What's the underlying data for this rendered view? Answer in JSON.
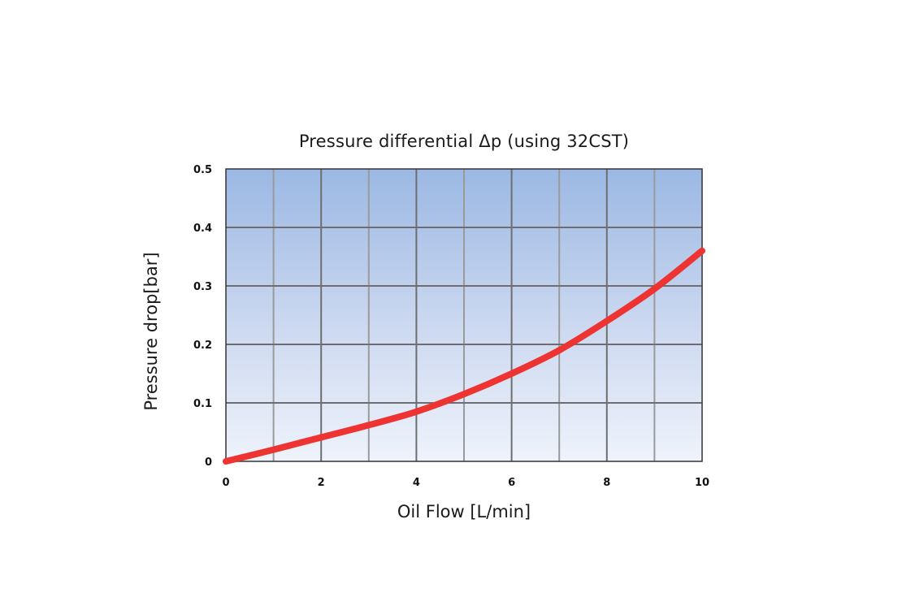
{
  "chart_data": {
    "type": "line",
    "title": "Pressure differential Δp (using 32CST)",
    "xlabel": "Oil Flow [L/min]",
    "ylabel": "Pressure drop[bar]",
    "xlim": [
      0,
      10
    ],
    "ylim": [
      0,
      0.5
    ],
    "xticks": [
      0,
      2,
      4,
      6,
      8,
      10
    ],
    "yticks": [
      0,
      0.1,
      0.2,
      0.3,
      0.4,
      0.5
    ],
    "ytick_labels": [
      "0",
      "0.1",
      "0.2",
      "0.3",
      "0.4",
      "0.5"
    ],
    "grid": true,
    "series": [
      {
        "color": "#ee3333",
        "x": [
          0,
          1,
          2,
          3,
          4,
          5,
          6,
          7,
          8,
          9,
          10
        ],
        "y": [
          0,
          0.02,
          0.041,
          0.062,
          0.085,
          0.115,
          0.15,
          0.19,
          0.24,
          0.295,
          0.36
        ]
      }
    ]
  }
}
